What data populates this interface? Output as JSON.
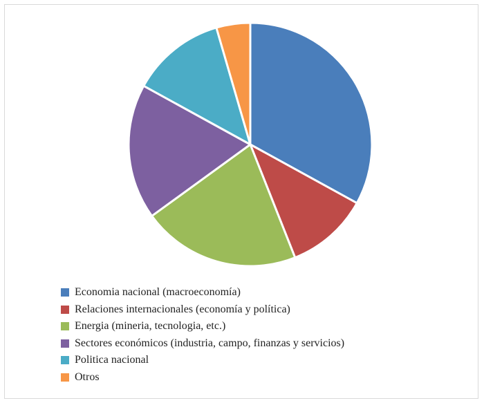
{
  "chart_data": {
    "type": "pie",
    "title": "",
    "legend_position": "bottom",
    "categories": [
      "Economia nacional (macroeconomía)",
      "Relaciones internacionales (economía y política)",
      "Energia (mineria, tecnologia, etc.)",
      "Sectores económicos (industria, campo, finanzas y servicios)",
      "Politica nacional",
      "Otros"
    ],
    "values": [
      33,
      11,
      21,
      18,
      12.5,
      4.5
    ],
    "colors": [
      "#4a7ebb",
      "#be4b48",
      "#9bbb59",
      "#7d60a0",
      "#4bacc6",
      "#f79646"
    ]
  }
}
